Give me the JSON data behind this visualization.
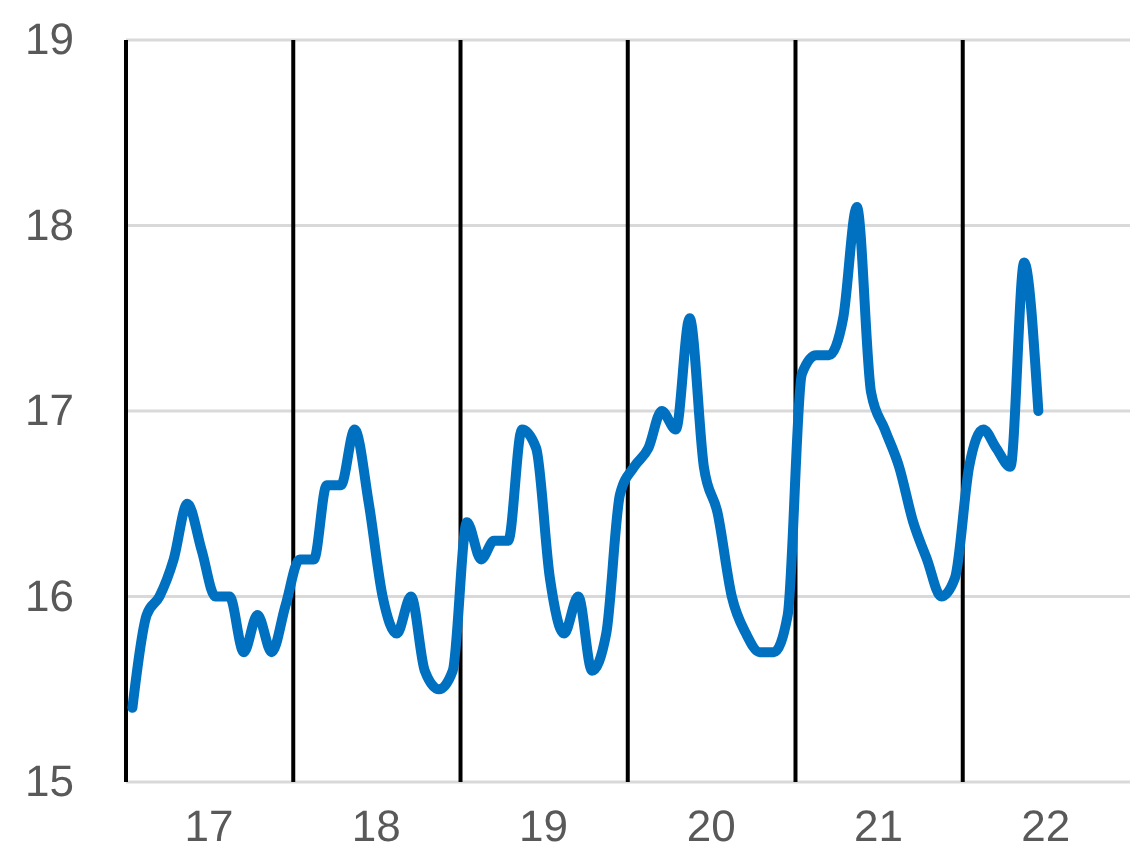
{
  "chart_data": {
    "type": "line",
    "x": [
      "2017-01-15",
      "2017-02-15",
      "2017-03-15",
      "2017-04-15",
      "2017-05-15",
      "2017-06-15",
      "2017-07-15",
      "2017-08-15",
      "2017-09-15",
      "2017-10-15",
      "2017-11-15",
      "2017-12-15",
      "2018-01-15",
      "2018-02-15",
      "2018-03-15",
      "2018-04-15",
      "2018-05-15",
      "2018-06-15",
      "2018-07-15",
      "2018-08-15",
      "2018-09-15",
      "2018-10-15",
      "2018-11-15",
      "2018-12-15",
      "2019-01-15",
      "2019-02-15",
      "2019-03-15",
      "2019-04-15",
      "2019-05-15",
      "2019-06-15",
      "2019-07-15",
      "2019-08-15",
      "2019-09-15",
      "2019-10-15",
      "2019-11-15",
      "2019-12-15",
      "2020-01-15",
      "2020-02-15",
      "2020-03-15",
      "2020-04-15",
      "2020-05-15",
      "2020-06-15",
      "2020-07-15",
      "2020-08-15",
      "2020-09-15",
      "2020-10-15",
      "2020-11-15",
      "2020-12-15",
      "2021-01-15",
      "2021-02-15",
      "2021-03-15",
      "2021-04-15",
      "2021-05-15",
      "2021-06-15",
      "2021-07-15",
      "2021-08-15",
      "2021-09-15",
      "2021-10-15",
      "2021-11-15",
      "2021-12-15",
      "2022-01-15",
      "2022-02-15",
      "2022-03-15",
      "2022-04-15",
      "2022-05-15",
      "2022-06-15"
    ],
    "series": [
      {
        "color": "#0070c0",
        "values": [
          15.4,
          15.9,
          16.0,
          16.2,
          16.5,
          16.25,
          16.0,
          16.0,
          15.7,
          15.9,
          15.7,
          15.95,
          16.2,
          16.2,
          16.6,
          16.6,
          16.9,
          16.5,
          16.0,
          15.8,
          16.0,
          15.6,
          15.5,
          15.6,
          16.4,
          16.2,
          16.3,
          16.3,
          16.9,
          16.8,
          16.1,
          15.8,
          16.0,
          15.6,
          15.8,
          16.55,
          16.7,
          16.8,
          17.0,
          16.9,
          17.5,
          16.7,
          16.45,
          16.0,
          15.8,
          15.7,
          15.7,
          15.9,
          17.2,
          17.3,
          17.3,
          17.5,
          18.1,
          17.1,
          16.9,
          16.7,
          16.4,
          16.2,
          16.0,
          16.1,
          16.7,
          16.9,
          16.8,
          16.7,
          17.8,
          17.0
        ]
      }
    ],
    "xlim": [
      "2017-01-01",
      "2023-01-01"
    ],
    "xticks": [
      {
        "value": "2017-07-01",
        "label": "17"
      },
      {
        "value": "2018-07-01",
        "label": "18"
      },
      {
        "value": "2019-07-01",
        "label": "19"
      },
      {
        "value": "2020-07-01",
        "label": "20"
      },
      {
        "value": "2021-07-01",
        "label": "21"
      },
      {
        "value": "2022-07-01",
        "label": "22"
      }
    ],
    "ylim": [
      15,
      19
    ],
    "yticks": [
      15,
      16,
      17,
      18,
      19
    ],
    "grid": "y",
    "marker": "none",
    "line_style": "solid",
    "legend": false,
    "ref_lines": [
      {
        "axis": "x",
        "value": "2017-01-01",
        "color": "#000000"
      },
      {
        "axis": "x",
        "value": "2018-01-01",
        "color": "#000000"
      },
      {
        "axis": "x",
        "value": "2019-01-01",
        "color": "#000000"
      },
      {
        "axis": "x",
        "value": "2020-01-01",
        "color": "#000000"
      },
      {
        "axis": "x",
        "value": "2021-01-01",
        "color": "#000000"
      },
      {
        "axis": "x",
        "value": "2022-01-01",
        "color": "#000000"
      }
    ]
  }
}
